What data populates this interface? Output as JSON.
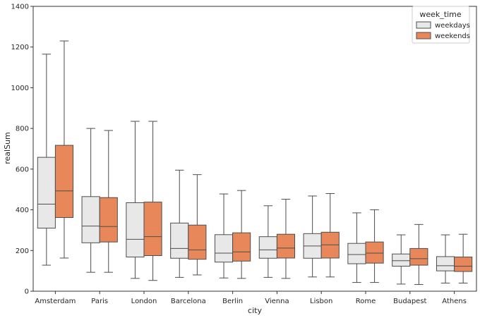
{
  "chart_data": {
    "type": "box",
    "title": "",
    "xlabel": "city",
    "ylabel": "realSum",
    "ylim": [
      0,
      1400
    ],
    "yticks": [
      0,
      200,
      400,
      600,
      800,
      1000,
      1200,
      1400
    ],
    "grid": false,
    "legend": {
      "title": "week_time",
      "placement": "top-right"
    },
    "categories": [
      "Amsterdam",
      "Paris",
      "London",
      "Barcelona",
      "Berlin",
      "Vienna",
      "Lisbon",
      "Rome",
      "Budapest",
      "Athens"
    ],
    "series": [
      {
        "name": "weekdays",
        "color": "#e8e8e8",
        "boxes": [
          {
            "whisker_low": 128,
            "q1": 310,
            "median": 428,
            "q3": 658,
            "whisker_high": 1165
          },
          {
            "whisker_low": 93,
            "q1": 238,
            "median": 320,
            "q3": 465,
            "whisker_high": 800
          },
          {
            "whisker_low": 63,
            "q1": 168,
            "median": 255,
            "q3": 435,
            "whisker_high": 835
          },
          {
            "whisker_low": 68,
            "q1": 162,
            "median": 210,
            "q3": 335,
            "whisker_high": 595
          },
          {
            "whisker_low": 65,
            "q1": 143,
            "median": 187,
            "q3": 278,
            "whisker_high": 478
          },
          {
            "whisker_low": 68,
            "q1": 162,
            "median": 203,
            "q3": 268,
            "whisker_high": 420
          },
          {
            "whisker_low": 70,
            "q1": 162,
            "median": 222,
            "q3": 283,
            "whisker_high": 468
          },
          {
            "whisker_low": 43,
            "q1": 135,
            "median": 180,
            "q3": 235,
            "whisker_high": 385
          },
          {
            "whisker_low": 35,
            "q1": 123,
            "median": 150,
            "q3": 183,
            "whisker_high": 277
          },
          {
            "whisker_low": 40,
            "q1": 100,
            "median": 125,
            "q3": 170,
            "whisker_high": 277
          }
        ]
      },
      {
        "name": "weekends",
        "color": "#e8875a",
        "boxes": [
          {
            "whisker_low": 163,
            "q1": 362,
            "median": 493,
            "q3": 717,
            "whisker_high": 1230
          },
          {
            "whisker_low": 93,
            "q1": 242,
            "median": 318,
            "q3": 460,
            "whisker_high": 790
          },
          {
            "whisker_low": 53,
            "q1": 175,
            "median": 268,
            "q3": 438,
            "whisker_high": 835
          },
          {
            "whisker_low": 80,
            "q1": 157,
            "median": 203,
            "q3": 325,
            "whisker_high": 573
          },
          {
            "whisker_low": 63,
            "q1": 148,
            "median": 193,
            "q3": 287,
            "whisker_high": 495
          },
          {
            "whisker_low": 63,
            "q1": 163,
            "median": 212,
            "q3": 280,
            "whisker_high": 452
          },
          {
            "whisker_low": 70,
            "q1": 163,
            "median": 228,
            "q3": 290,
            "whisker_high": 480
          },
          {
            "whisker_low": 43,
            "q1": 138,
            "median": 187,
            "q3": 242,
            "whisker_high": 400
          },
          {
            "whisker_low": 33,
            "q1": 128,
            "median": 160,
            "q3": 210,
            "whisker_high": 328
          },
          {
            "whisker_low": 40,
            "q1": 97,
            "median": 123,
            "q3": 168,
            "whisker_high": 280
          }
        ]
      }
    ]
  }
}
